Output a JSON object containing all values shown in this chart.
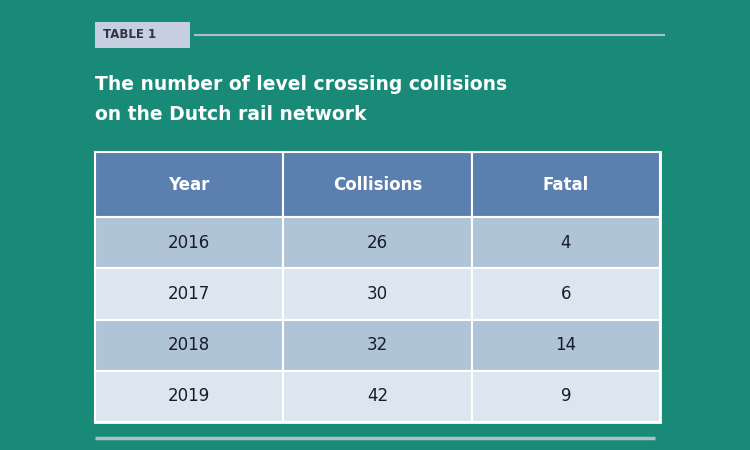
{
  "title_line1": "The number of level crossing collisions",
  "title_line2": "on the Dutch rail network",
  "table_label": "TABLE 1",
  "bg_color": "#1a8a78",
  "header_bg": "#5b7fae",
  "row_colors": [
    "#b0c4d8",
    "#dce6f0",
    "#b0c4d8",
    "#dce6f0"
  ],
  "header_text_color": "#ffffff",
  "title_color": "#ffffff",
  "cell_text_color": "#1a1a2e",
  "columns": [
    "Year",
    "Collisions",
    "Fatal"
  ],
  "rows": [
    [
      "2016",
      "26",
      "4"
    ],
    [
      "2017",
      "30",
      "6"
    ],
    [
      "2018",
      "32",
      "14"
    ],
    [
      "2019",
      "42",
      "9"
    ]
  ],
  "table_edge_color": "#ffffff",
  "label_bg": "#c5cfe0",
  "label_text_color": "#333344",
  "line_color": "#b0bec8"
}
